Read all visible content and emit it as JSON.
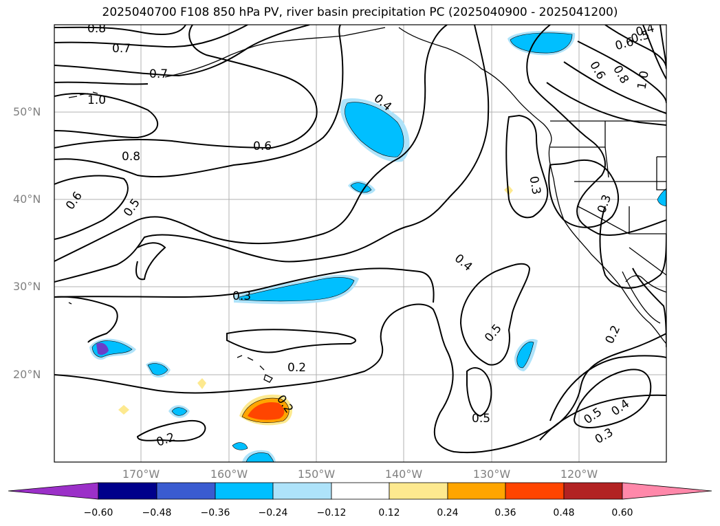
{
  "title": "2025040700 F108 850 hPa PV, river basin precipitation PC (2025040900 - 2025041200)",
  "lat_labels": [
    "50°N",
    "40°N",
    "30°N",
    "20°N"
  ],
  "lon_labels": [
    "170°W",
    "160°W",
    "150°W",
    "140°W",
    "130°W",
    "120°W"
  ],
  "contour_labels": [
    "0.8",
    "0.7",
    "0.7",
    "1.0",
    "0.8",
    "0.6",
    "0.5",
    "0.6",
    "0.4",
    "0.3",
    "0.2",
    "0.2",
    "0.2",
    "0.4",
    "0.5",
    "0.5",
    "0.5",
    "0.4",
    "0.3",
    "0.2",
    "0.3",
    "0.3",
    "0.6",
    "0.5",
    "0.6",
    "0.4",
    "0.8",
    "1.0"
  ],
  "colorbar": {
    "ticks": [
      "−0.60",
      "−0.48",
      "−0.36",
      "−0.24",
      "−0.12",
      "0.12",
      "0.24",
      "0.36",
      "0.48",
      "0.60"
    ],
    "colors": [
      "#9b30c8",
      "#00008b",
      "#3a5bd0",
      "#00bfff",
      "#aee3fa",
      "#ffffff",
      "#fde98f",
      "#ffa500",
      "#ff4500",
      "#b22222",
      "#ff88aa"
    ]
  },
  "fill_colors": {
    "blue": "#00bfff",
    "light_blue": "#aee3fa",
    "purple": "#6a3fc8",
    "yellow": "#fde98f",
    "orange": "#ffa500",
    "red_orange": "#ff4500"
  }
}
